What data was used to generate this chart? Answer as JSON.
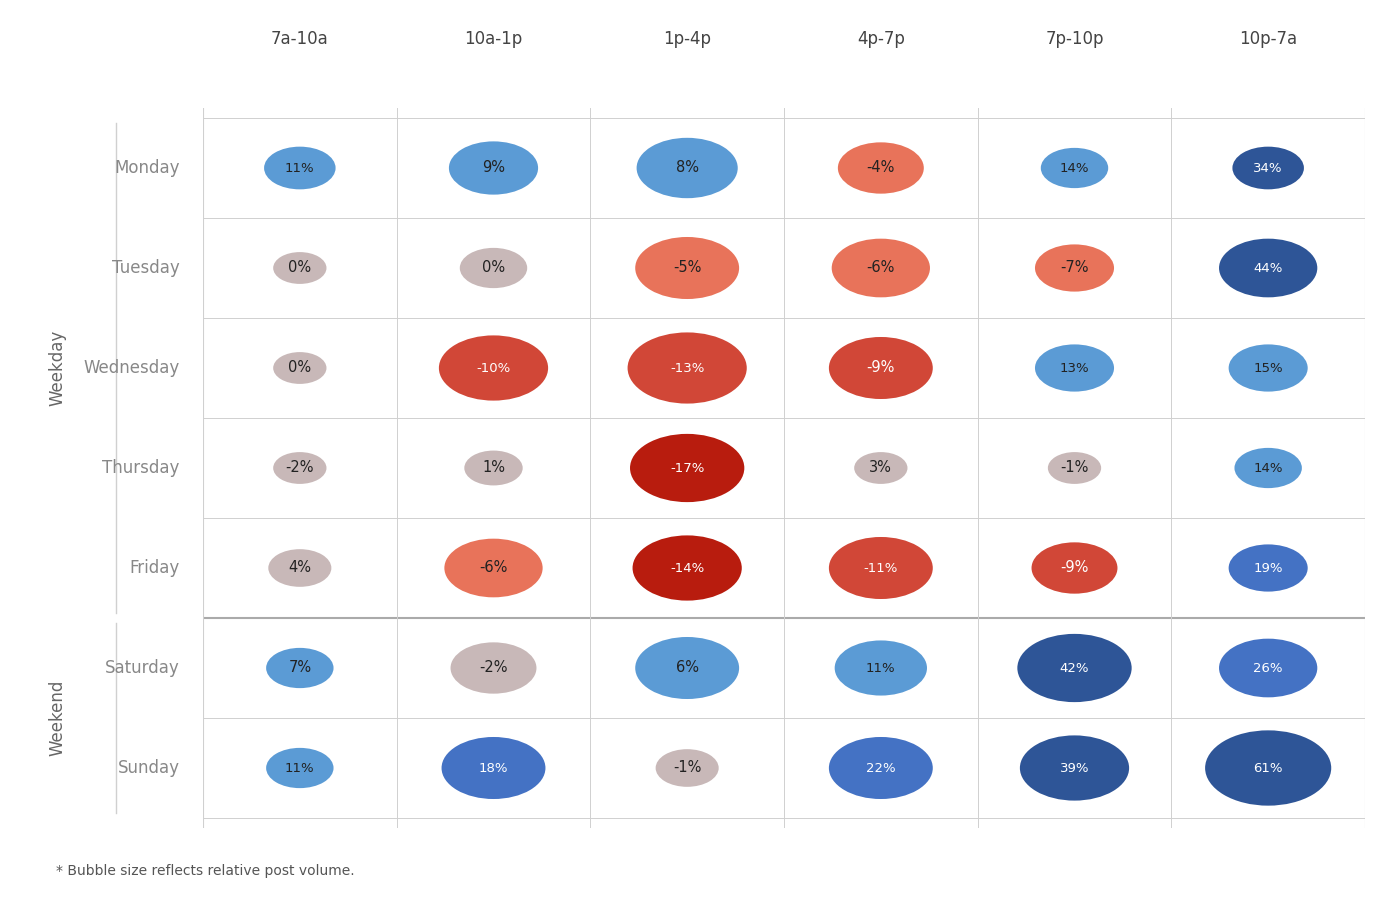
{
  "columns": [
    "7a-10a",
    "10a-1p",
    "1p-4p",
    "4p-7p",
    "7p-10p",
    "10p-7a"
  ],
  "rows": [
    "Monday",
    "Tuesday",
    "Wednesday",
    "Thursday",
    "Friday",
    "Saturday",
    "Sunday"
  ],
  "weekday_label": "Weekday",
  "weekend_label": "Weekend",
  "footnote": "* Bubble size reflects relative post volume.",
  "values": [
    [
      11,
      9,
      8,
      -4,
      14,
      34
    ],
    [
      0,
      0,
      -5,
      -6,
      -7,
      44
    ],
    [
      0,
      -10,
      -13,
      -9,
      13,
      15
    ],
    [
      -2,
      1,
      -17,
      3,
      -1,
      14
    ],
    [
      4,
      -6,
      -14,
      -11,
      -9,
      19
    ],
    [
      7,
      -2,
      6,
      11,
      42,
      26
    ],
    [
      11,
      18,
      -1,
      22,
      39,
      61
    ]
  ],
  "bubble_sizes": [
    [
      900,
      1400,
      1800,
      1300,
      800,
      900
    ],
    [
      500,
      800,
      1900,
      1700,
      1100,
      1700
    ],
    [
      500,
      2100,
      2500,
      1900,
      1100,
      1100
    ],
    [
      500,
      600,
      2300,
      500,
      500,
      800
    ],
    [
      700,
      1700,
      2100,
      1900,
      1300,
      1100
    ],
    [
      800,
      1300,
      1900,
      1500,
      2300,
      1700
    ],
    [
      800,
      1900,
      700,
      1900,
      2100,
      2800
    ]
  ],
  "bg_color": "#ffffff",
  "grid_color": "#d0d0d0",
  "sep_color": "#aaaaaa",
  "row_label_color": "#888888",
  "col_label_color": "#444444",
  "axis_label_color": "#666666",
  "title_color": "#444444",
  "c_blue1": "#5b9bd5",
  "c_blue2": "#4472c4",
  "c_blue3": "#2e5597",
  "c_neutral": "#c8b8b8",
  "c_red1": "#e8735a",
  "c_red2": "#d14737",
  "c_red3": "#b81c0e",
  "text_dark": "#222222",
  "text_light": "#ffffff"
}
